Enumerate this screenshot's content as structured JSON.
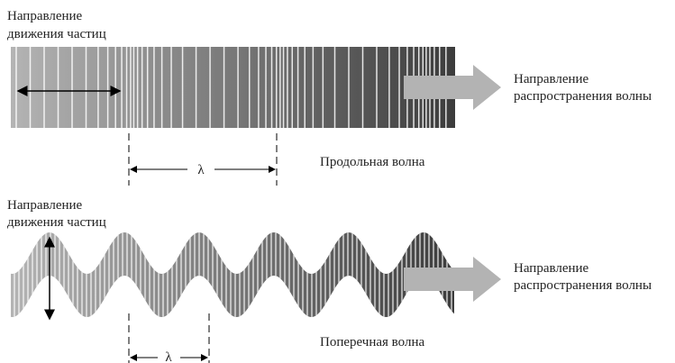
{
  "longitudinal": {
    "particle_label": [
      "Направление",
      "движения частиц"
    ],
    "direction_label": [
      "Направление",
      "распространения волны"
    ],
    "lambda": "λ",
    "caption": "Продольная волна"
  },
  "transverse": {
    "particle_label": [
      "Направление",
      "движения частиц"
    ],
    "direction_label": [
      "Направление",
      "распространения волны"
    ],
    "lambda": "λ",
    "caption": "Поперечная волна"
  }
}
